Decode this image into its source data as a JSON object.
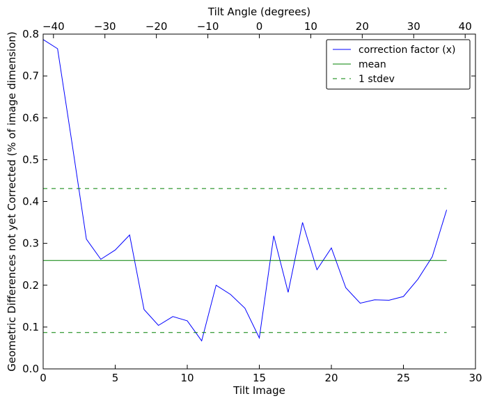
{
  "chart_data": {
    "type": "line",
    "xlabel": "Tilt Image",
    "ylabel": "Geometric Differences not yet Corrected (% of image dimension)",
    "top_axis_label": "Tilt Angle (degrees)",
    "xlim": [
      0,
      30
    ],
    "ylim": [
      0,
      0.8
    ],
    "x_ticks": [
      0,
      5,
      10,
      15,
      20,
      25,
      30
    ],
    "y_ticks": [
      0.0,
      0.1,
      0.2,
      0.3,
      0.4,
      0.5,
      0.6,
      0.7,
      0.8
    ],
    "top_xlim": [
      -42,
      42
    ],
    "top_ticks": [
      -40,
      -30,
      -20,
      -10,
      0,
      10,
      20,
      30,
      40
    ],
    "series": [
      {
        "name": "correction factor (x)",
        "color": "#0000ff",
        "style": "solid",
        "x": [
          0,
          1,
          2,
          3,
          4,
          5,
          6,
          7,
          8,
          9,
          10,
          11,
          12,
          13,
          14,
          15,
          16,
          17,
          18,
          19,
          20,
          21,
          22,
          23,
          24,
          25,
          26,
          27,
          28
        ],
        "values": [
          0.787,
          0.765,
          0.54,
          0.31,
          0.262,
          0.284,
          0.32,
          0.142,
          0.104,
          0.125,
          0.115,
          0.067,
          0.2,
          0.178,
          0.145,
          0.074,
          0.318,
          0.183,
          0.35,
          0.237,
          0.289,
          0.194,
          0.157,
          0.165,
          0.164,
          0.173,
          0.214,
          0.268,
          0.38
        ]
      },
      {
        "name": "mean",
        "color": "#008000",
        "style": "solid",
        "x": [
          0,
          28
        ],
        "values": [
          0.259,
          0.259
        ]
      },
      {
        "name": "1 stdev",
        "color": "#008000",
        "style": "dashed",
        "x": [
          0,
          28
        ],
        "values": [
          0.431,
          0.431
        ]
      },
      {
        "name": "",
        "color": "#008000",
        "style": "dashed",
        "x": [
          0,
          28
        ],
        "values": [
          0.087,
          0.087
        ]
      }
    ],
    "legend": {
      "placement": "top-right",
      "entries": [
        "correction factor (x)",
        "mean",
        "1 stdev"
      ]
    },
    "grid": false
  }
}
